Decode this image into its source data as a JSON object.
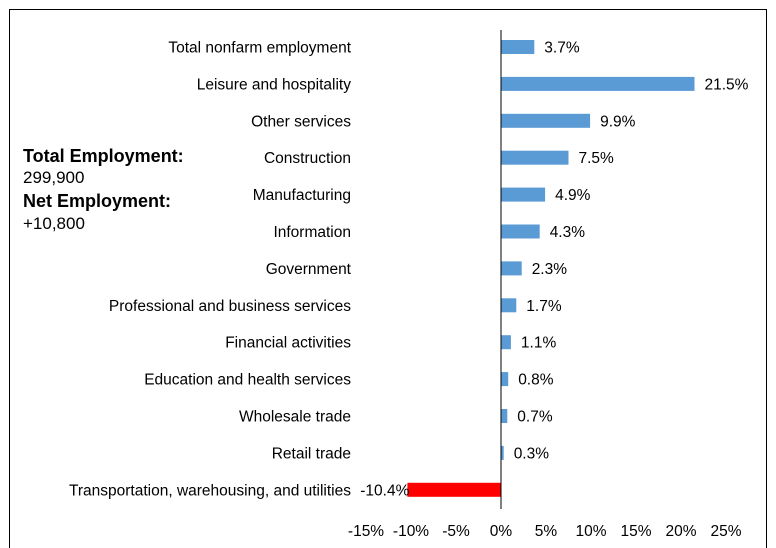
{
  "annotations": {
    "total_label": "Total Employment:",
    "total_value": "299,900",
    "net_label": "Net Employment:",
    "net_value": "+10,800"
  },
  "chart_data": {
    "type": "bar",
    "orientation": "horizontal",
    "title": "",
    "xlabel": "",
    "ylabel": "",
    "xlim": [
      -15,
      25
    ],
    "x_ticks": [
      "-15%",
      "-10%",
      "-5%",
      "0%",
      "5%",
      "10%",
      "15%",
      "20%",
      "25%"
    ],
    "grid": false,
    "legend": "none",
    "categories": [
      "Total nonfarm employment",
      "Leisure and hospitality",
      "Other services",
      "Construction",
      "Manufacturing",
      "Information",
      "Government",
      "Professional and business services",
      "Financial activities",
      "Education and health services",
      "Wholesale trade",
      "Retail trade",
      "Transportation, warehousing, and utilities"
    ],
    "values": [
      3.7,
      21.5,
      9.9,
      7.5,
      4.9,
      4.3,
      2.3,
      1.7,
      1.1,
      0.8,
      0.7,
      0.3,
      -10.4
    ],
    "value_labels": [
      "3.7%",
      "21.5%",
      "9.9%",
      "7.5%",
      "4.9%",
      "4.3%",
      "2.3%",
      "1.7%",
      "1.1%",
      "0.8%",
      "0.7%",
      "0.3%",
      "-10.4%"
    ],
    "colors": {
      "positive": "#5b9bd5",
      "negative": "#ff0000",
      "axis": "#000000",
      "frame": "#000000"
    }
  }
}
